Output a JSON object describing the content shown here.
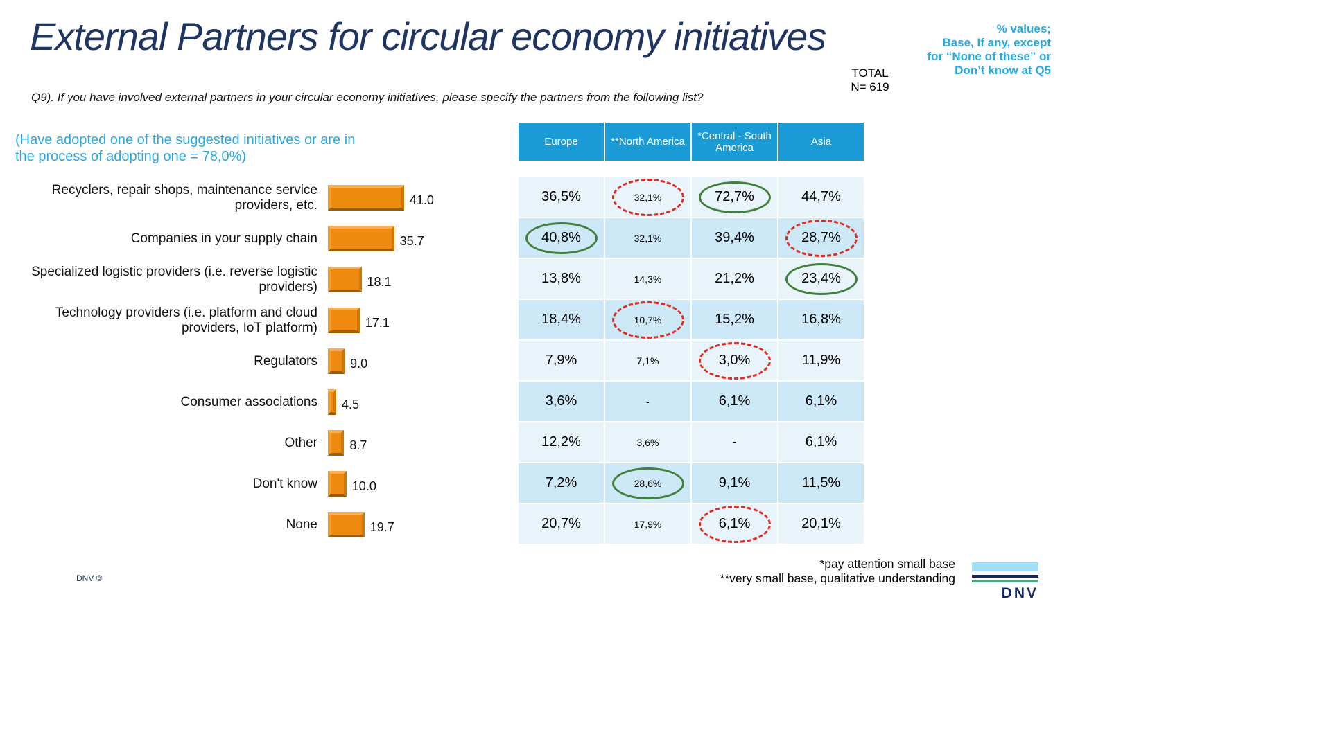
{
  "slide": {
    "title": "External Partners for circular economy initiatives",
    "note_right": [
      "% values;",
      "Base, If any, except",
      "for “None of these” or",
      "Don’t know at Q5"
    ],
    "total_label": "TOTAL",
    "total_n": "N= 619",
    "question": "Q9). If you have involved external partners in your circular economy initiatives, please specify the partners from the following list?",
    "adoption_note_line1": "(Have adopted one of the suggested initiatives or are in",
    "adoption_note_line2": "the process of adopting one = 78,0%)",
    "footnote1": "*pay attention small base",
    "footnote2": "**very small base, qualitative understanding",
    "copyright": "DNV ©",
    "logo_text": "DNV"
  },
  "colors": {
    "title": "#1E3461",
    "accent_cyan": "#29A9E1",
    "table_header": "#1B9BD6",
    "row_light": "#E8F3FA",
    "row_dark": "#CDE8F6",
    "bar_orange": "#ED8A0F",
    "ellipse_red": "#E22A1E",
    "ellipse_green": "#41803A"
  },
  "chart_data": {
    "type": "bar",
    "orientation": "horizontal",
    "title": "External Partners for circular economy initiatives",
    "xlabel": "",
    "ylabel": "",
    "xlim": [
      0,
      100
    ],
    "grid": false,
    "legend": false,
    "bar_color": "#ED8A0F",
    "categories": [
      "Recyclers, repair shops, maintenance service providers, etc.",
      "Companies in your supply chain",
      "Specialized logistic providers (i.e. reverse logistic providers)",
      "Technology providers (i.e. platform and cloud providers, IoT platform)",
      "Regulators",
      "Consumer associations",
      "Other",
      "Don't know",
      "None"
    ],
    "values": [
      41.0,
      35.7,
      18.1,
      17.1,
      9.0,
      4.5,
      8.7,
      10.0,
      19.7
    ],
    "value_labels": [
      "41.0",
      "35.7",
      "18.1",
      "17.1",
      "9.0",
      "4.5",
      "8.7",
      "10.0",
      "19.7"
    ],
    "table": {
      "columns": [
        "Europe",
        "**North America",
        "*Central - South America",
        "Asia"
      ],
      "rows": [
        {
          "values": [
            "36,5%",
            "32,1%",
            "72,7%",
            "44,7%"
          ]
        },
        {
          "values": [
            "40,8%",
            "32,1%",
            "39,4%",
            "28,7%"
          ]
        },
        {
          "values": [
            "13,8%",
            "14,3%",
            "21,2%",
            "23,4%"
          ]
        },
        {
          "values": [
            "18,4%",
            "10,7%",
            "15,2%",
            "16,8%"
          ]
        },
        {
          "values": [
            "7,9%",
            "7,1%",
            "3,0%",
            "11,9%"
          ]
        },
        {
          "values": [
            "3,6%",
            "-",
            "6,1%",
            "6,1%"
          ]
        },
        {
          "values": [
            "12,2%",
            "3,6%",
            "-",
            "6,1%"
          ]
        },
        {
          "values": [
            "7,2%",
            "28,6%",
            "9,1%",
            "11,5%"
          ]
        },
        {
          "values": [
            "20,7%",
            "17,9%",
            "6,1%",
            "20,1%"
          ]
        }
      ],
      "annotations": [
        {
          "row": 0,
          "col": 1,
          "style": "red-dashed"
        },
        {
          "row": 0,
          "col": 2,
          "style": "green-solid"
        },
        {
          "row": 1,
          "col": 0,
          "style": "green-solid"
        },
        {
          "row": 1,
          "col": 3,
          "style": "red-dashed"
        },
        {
          "row": 2,
          "col": 3,
          "style": "green-solid"
        },
        {
          "row": 3,
          "col": 1,
          "style": "red-dashed"
        },
        {
          "row": 4,
          "col": 2,
          "style": "red-dashed"
        },
        {
          "row": 7,
          "col": 1,
          "style": "green-solid"
        },
        {
          "row": 8,
          "col": 2,
          "style": "red-dashed"
        }
      ]
    }
  }
}
